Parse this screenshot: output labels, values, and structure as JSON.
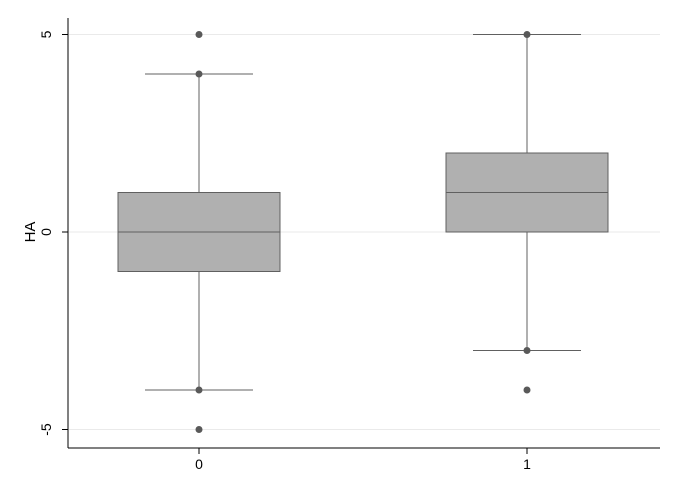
{
  "chart_data": {
    "type": "box",
    "title": "",
    "xlabel": "",
    "ylabel": "HA",
    "categories": [
      "0",
      "1"
    ],
    "ylim": [
      -5,
      5
    ],
    "yticks": [
      -5,
      0,
      5
    ],
    "grid": true,
    "boxes": [
      {
        "category": "0",
        "q1": -1,
        "median": 0,
        "q3": 1,
        "whisker_low": -4,
        "whisker_high": 4,
        "outliers": [
          5,
          -5
        ]
      },
      {
        "category": "1",
        "q1": 0,
        "median": 1,
        "q3": 2,
        "whisker_low": -3,
        "whisker_high": 5,
        "outliers": [
          -4
        ]
      }
    ]
  },
  "colors": {
    "box_fill": "#b0b0b0",
    "line": "#606060",
    "marker": "#595959",
    "grid": "#eaeaea",
    "axis": "#000000"
  }
}
